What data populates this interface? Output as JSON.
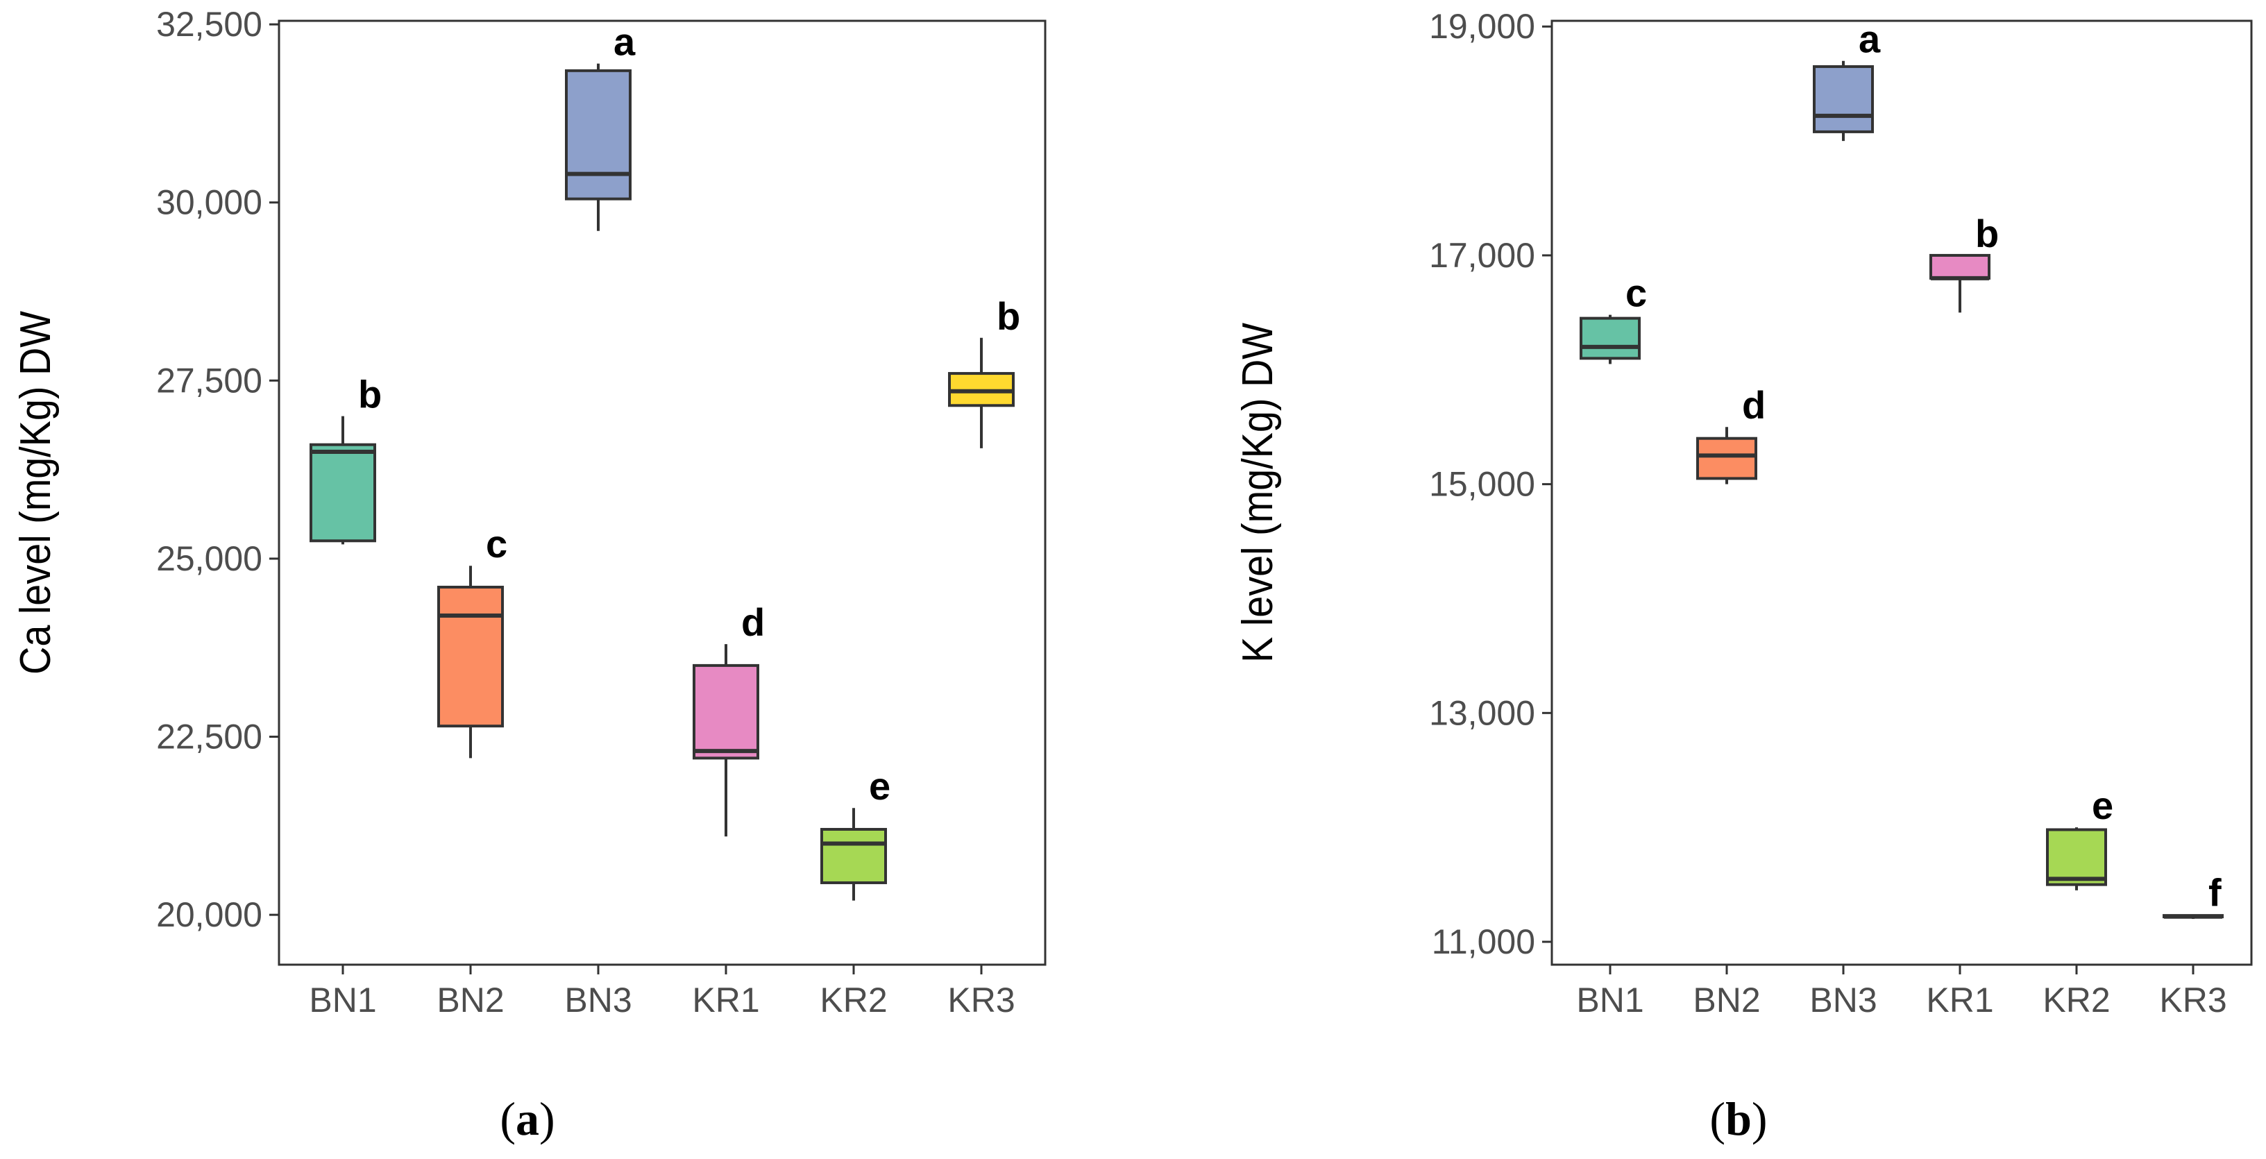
{
  "chart_data": [
    {
      "type": "boxplot",
      "panel_label": "a",
      "ylabel": "Ca level (mg/Kg) DW",
      "xlabel": "",
      "categories": [
        "BN1",
        "BN2",
        "BN3",
        "KR1",
        "KR2",
        "KR3"
      ],
      "ylim": [
        19300,
        32550
      ],
      "yticks": [
        20000,
        22500,
        25000,
        27500,
        30000,
        32500
      ],
      "ytick_labels": [
        "20,000",
        "22,500",
        "25,000",
        "27,500",
        "30,000",
        "32,500"
      ],
      "grid": false,
      "boxes": [
        {
          "category": "BN1",
          "min": 25200,
          "q1": 25250,
          "median": 26500,
          "q3": 26600,
          "max": 27000,
          "letter": "b",
          "color": "#66c2a5"
        },
        {
          "category": "BN2",
          "min": 22200,
          "q1": 22650,
          "median": 24200,
          "q3": 24600,
          "max": 24900,
          "letter": "c",
          "color": "#fc8d62"
        },
        {
          "category": "BN3",
          "min": 29600,
          "q1": 30050,
          "median": 30400,
          "q3": 31850,
          "max": 31950,
          "letter": "a",
          "color": "#8da0cb"
        },
        {
          "category": "KR1",
          "min": 21100,
          "q1": 22200,
          "median": 22300,
          "q3": 23500,
          "max": 23800,
          "letter": "d",
          "color": "#e78ac3"
        },
        {
          "category": "KR2",
          "min": 20200,
          "q1": 20450,
          "median": 21000,
          "q3": 21200,
          "max": 21500,
          "letter": "e",
          "color": "#a6d854"
        },
        {
          "category": "KR3",
          "min": 26550,
          "q1": 27150,
          "median": 27350,
          "q3": 27600,
          "max": 28100,
          "letter": "b",
          "color": "#ffd92f"
        }
      ]
    },
    {
      "type": "boxplot",
      "panel_label": "b",
      "ylabel": "K level (mg/Kg) DW",
      "xlabel": "",
      "categories": [
        "BN1",
        "BN2",
        "BN3",
        "KR1",
        "KR2",
        "KR3"
      ],
      "ylim": [
        10800,
        19050
      ],
      "yticks": [
        11000,
        13000,
        15000,
        17000,
        19000
      ],
      "ytick_labels": [
        "11,000",
        "13,000",
        "15,000",
        "17,000",
        "19,000"
      ],
      "grid": false,
      "boxes": [
        {
          "category": "BN1",
          "min": 16050,
          "q1": 16100,
          "median": 16200,
          "q3": 16450,
          "max": 16480,
          "letter": "c",
          "color": "#66c2a5"
        },
        {
          "category": "BN2",
          "min": 15000,
          "q1": 15050,
          "median": 15250,
          "q3": 15400,
          "max": 15500,
          "letter": "d",
          "color": "#fc8d62"
        },
        {
          "category": "BN3",
          "min": 18000,
          "q1": 18080,
          "median": 18220,
          "q3": 18650,
          "max": 18700,
          "letter": "a",
          "color": "#8da0cb"
        },
        {
          "category": "KR1",
          "min": 16500,
          "q1": 16800,
          "median": 16800,
          "q3": 17000,
          "max": 17000,
          "letter": "b",
          "color": "#e78ac3"
        },
        {
          "category": "KR2",
          "min": 11450,
          "q1": 11500,
          "median": 11550,
          "q3": 11980,
          "max": 12000,
          "letter": "e",
          "color": "#a6d854"
        },
        {
          "category": "KR3",
          "min": 11200,
          "q1": 11220,
          "median": 11220,
          "q3": 11230,
          "max": 11240,
          "letter": "f",
          "color": "#ffd92f"
        }
      ]
    }
  ]
}
